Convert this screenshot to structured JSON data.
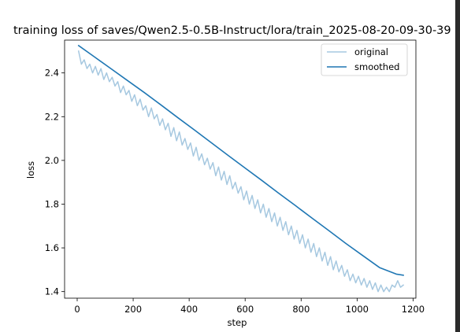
{
  "chart_data": {
    "type": "line",
    "title": "training loss of saves/Qwen2.5-0.5B-Instruct/lora/train_2025-08-20-09-30-39",
    "xlabel": "step",
    "ylabel": "loss",
    "xlim": [
      -45,
      1210
    ],
    "ylim": [
      1.37,
      2.55
    ],
    "xticks": [
      0,
      200,
      400,
      600,
      800,
      1000,
      1200
    ],
    "yticks": [
      1.4,
      1.6,
      1.8,
      2.0,
      2.2,
      2.4
    ],
    "ytick_labels": [
      "1.4",
      "1.6",
      "1.8",
      "2.0",
      "2.2",
      "2.4"
    ],
    "grid": false,
    "legend_position": "top-right",
    "series": [
      {
        "name": "original",
        "color": "#a6c8e0",
        "x": [
          5,
          15,
          25,
          35,
          45,
          55,
          65,
          75,
          85,
          95,
          105,
          115,
          125,
          135,
          145,
          155,
          165,
          175,
          185,
          195,
          205,
          215,
          225,
          235,
          245,
          255,
          265,
          275,
          285,
          295,
          305,
          315,
          325,
          335,
          345,
          355,
          365,
          375,
          385,
          395,
          405,
          415,
          425,
          435,
          445,
          455,
          465,
          475,
          485,
          495,
          505,
          515,
          525,
          535,
          545,
          555,
          565,
          575,
          585,
          595,
          605,
          615,
          625,
          635,
          645,
          655,
          665,
          675,
          685,
          695,
          705,
          715,
          725,
          735,
          745,
          755,
          765,
          775,
          785,
          795,
          805,
          815,
          825,
          835,
          845,
          855,
          865,
          875,
          885,
          895,
          905,
          915,
          925,
          935,
          945,
          955,
          965,
          975,
          985,
          995,
          1005,
          1015,
          1025,
          1035,
          1045,
          1055,
          1065,
          1075,
          1085,
          1095,
          1105,
          1115,
          1125,
          1135,
          1145,
          1155,
          1165
        ],
        "y": [
          2.5,
          2.44,
          2.46,
          2.42,
          2.44,
          2.4,
          2.43,
          2.39,
          2.42,
          2.37,
          2.4,
          2.36,
          2.38,
          2.34,
          2.36,
          2.31,
          2.34,
          2.3,
          2.32,
          2.27,
          2.3,
          2.25,
          2.28,
          2.23,
          2.25,
          2.2,
          2.24,
          2.19,
          2.21,
          2.16,
          2.19,
          2.14,
          2.17,
          2.11,
          2.15,
          2.09,
          2.13,
          2.07,
          2.1,
          2.05,
          2.08,
          2.02,
          2.06,
          2.0,
          2.03,
          1.98,
          2.01,
          1.96,
          1.99,
          1.93,
          1.97,
          1.91,
          1.95,
          1.89,
          1.93,
          1.87,
          1.9,
          1.85,
          1.88,
          1.82,
          1.86,
          1.8,
          1.84,
          1.78,
          1.82,
          1.76,
          1.8,
          1.74,
          1.78,
          1.72,
          1.76,
          1.7,
          1.74,
          1.68,
          1.72,
          1.66,
          1.7,
          1.64,
          1.68,
          1.62,
          1.66,
          1.6,
          1.64,
          1.58,
          1.62,
          1.56,
          1.6,
          1.54,
          1.58,
          1.52,
          1.56,
          1.5,
          1.54,
          1.49,
          1.52,
          1.47,
          1.5,
          1.45,
          1.48,
          1.44,
          1.47,
          1.43,
          1.46,
          1.42,
          1.45,
          1.41,
          1.44,
          1.4,
          1.43,
          1.4,
          1.42,
          1.4,
          1.43,
          1.42,
          1.45,
          1.42,
          1.43
        ]
      },
      {
        "name": "smoothed",
        "color": "#1f77b4",
        "x": [
          5,
          60,
          120,
          180,
          240,
          300,
          360,
          420,
          480,
          540,
          600,
          660,
          720,
          780,
          840,
          900,
          960,
          1020,
          1080,
          1140,
          1165
        ],
        "y": [
          2.525,
          2.475,
          2.42,
          2.365,
          2.31,
          2.253,
          2.195,
          2.138,
          2.08,
          2.022,
          1.965,
          1.908,
          1.85,
          1.793,
          1.735,
          1.678,
          1.62,
          1.565,
          1.51,
          1.48,
          1.475
        ]
      }
    ]
  }
}
